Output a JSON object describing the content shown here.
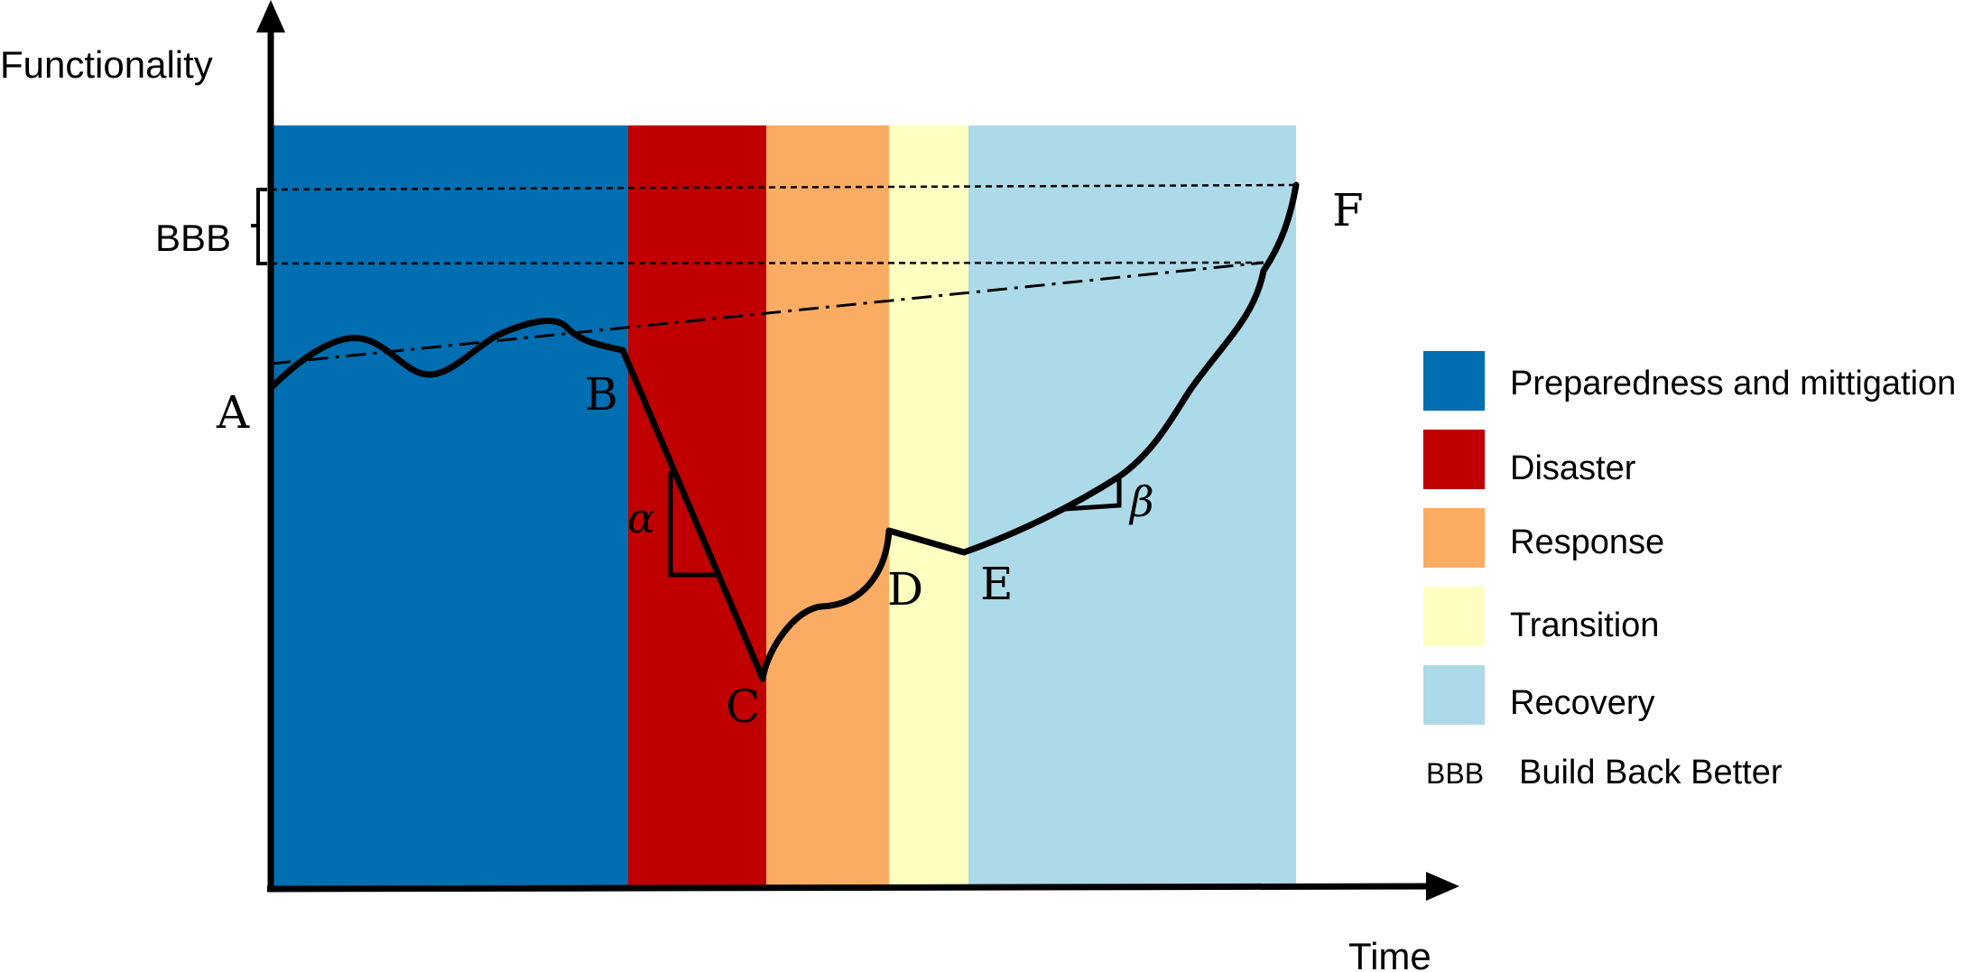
{
  "axes": {
    "y_label": "Functionality",
    "x_label": "Time"
  },
  "phases": [
    {
      "label": "Preparedness and mittigation",
      "color": "#006EB0"
    },
    {
      "label": "Disaster",
      "color": "#C00000"
    },
    {
      "label": "Response",
      "color": "#FBAC63"
    },
    {
      "label": "Transition",
      "color": "#FEFEC0"
    },
    {
      "label": "Recovery",
      "color": "#ADDAE8"
    }
  ],
  "points": {
    "a": "A",
    "b": "B",
    "c": "C",
    "d": "D",
    "e": "E",
    "f": "F"
  },
  "slopes": {
    "alpha": "α",
    "beta": "β"
  },
  "bbb": {
    "abbr": "BBB",
    "legend_abbr": "BBB",
    "legend_label": "Build Back Better"
  }
}
